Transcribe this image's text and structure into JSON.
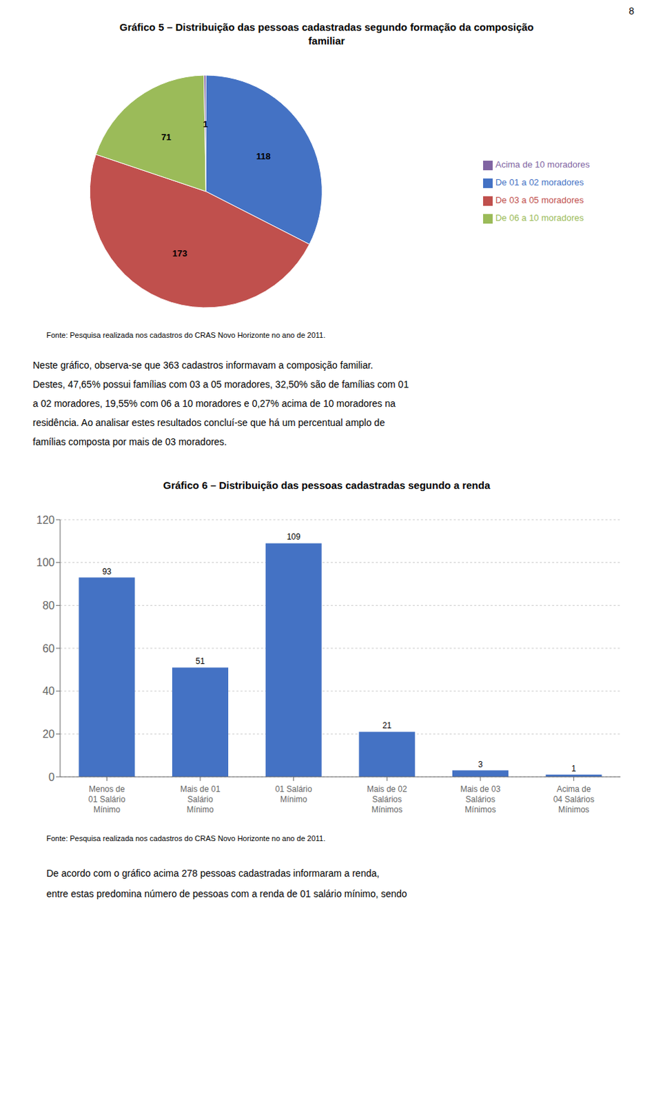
{
  "chart_data": [
    {
      "type": "pie",
      "title": "Gráfico 5 – Distribuição das pessoas cadastradas segundo formação da composição\nfamiliar",
      "categories": [
        "De 01 a 02 moradores",
        "De 03 a 05 moradores",
        "De 06 a 10 moradores",
        "Acima de 10 moradores"
      ],
      "values": [
        118,
        173,
        71,
        1
      ],
      "colors": [
        "#4472C4",
        "#C0504D",
        "#9BBB59",
        "#8064A2"
      ],
      "data_labels": true,
      "legend": "right",
      "annotations": [
        "8",
        "Fonte: Pesquisa realizada nos cadastros do CRAS Novo Horizonte no ano de 2011.",
        "Neste gráfico, observa-se que 363 cadastros informavam a composição familiar.",
        "Destes, 47,65% possui famílias com 03 a 05 moradores, 32,50% são de famílias com 01",
        "a 02 moradores, 19,55% com 06 a 10 moradores e 0,27% acima de 10 moradores na",
        "residência. Ao analisar estes resultados concluí-se que há um percentual amplo de",
        "famílias composta por mais de 03 moradores."
      ]
    },
    {
      "type": "bar",
      "title": "Gráfico 6 – Distribuição das pessoas cadastradas segundo a renda",
      "categories": [
        "Menos de\n01 Salário\nMínimo",
        "Mais de 01\nSalário\nMínimo",
        "01 Salário\nMínimo",
        "Mais de 02\nSalários\nMínimos",
        "Mais de 03\nSalários\nMínimos",
        "Acima de\n04 Salários\nMínimos"
      ],
      "values": [
        93,
        51,
        109,
        21,
        3,
        1
      ],
      "color": "#4472C4",
      "ylim": [
        0,
        120
      ],
      "yticks": [
        0,
        20,
        40,
        60,
        80,
        100,
        120
      ],
      "grid": true,
      "data_labels": true,
      "annotations": [
        "Fonte: Pesquisa realizada nos cadastros do CRAS Novo Horizonte no ano de 2011.",
        "De acordo com o gráfico acima 278 pessoas cadastradas informaram a renda,",
        "entre estas predomina número de pessoas com a renda de 01 salário mínimo, sendo"
      ]
    }
  ]
}
